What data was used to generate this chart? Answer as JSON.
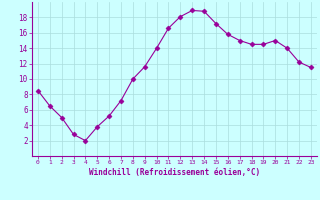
{
  "x": [
    0,
    1,
    2,
    3,
    4,
    5,
    6,
    7,
    8,
    9,
    10,
    11,
    12,
    13,
    14,
    15,
    16,
    17,
    18,
    19,
    20,
    21,
    22,
    23
  ],
  "y": [
    8.5,
    6.5,
    5.0,
    2.8,
    2.0,
    3.8,
    5.2,
    7.2,
    10.0,
    11.6,
    14.0,
    16.6,
    18.1,
    18.9,
    18.8,
    17.2,
    15.8,
    15.0,
    14.5,
    14.5,
    15.0,
    14.0,
    12.2,
    11.5
  ],
  "line_color": "#990099",
  "marker": "D",
  "marker_size": 2.5,
  "bg_color": "#ccffff",
  "grid_color": "#aadddd",
  "xlabel": "Windchill (Refroidissement éolien,°C)",
  "xlabel_color": "#990099",
  "tick_color": "#990099",
  "ylim": [
    0,
    20
  ],
  "yticks": [
    2,
    4,
    6,
    8,
    10,
    12,
    14,
    16,
    18
  ],
  "xlim": [
    -0.5,
    23.5
  ],
  "xticks": [
    0,
    1,
    2,
    3,
    4,
    5,
    6,
    7,
    8,
    9,
    10,
    11,
    12,
    13,
    14,
    15,
    16,
    17,
    18,
    19,
    20,
    21,
    22,
    23
  ]
}
